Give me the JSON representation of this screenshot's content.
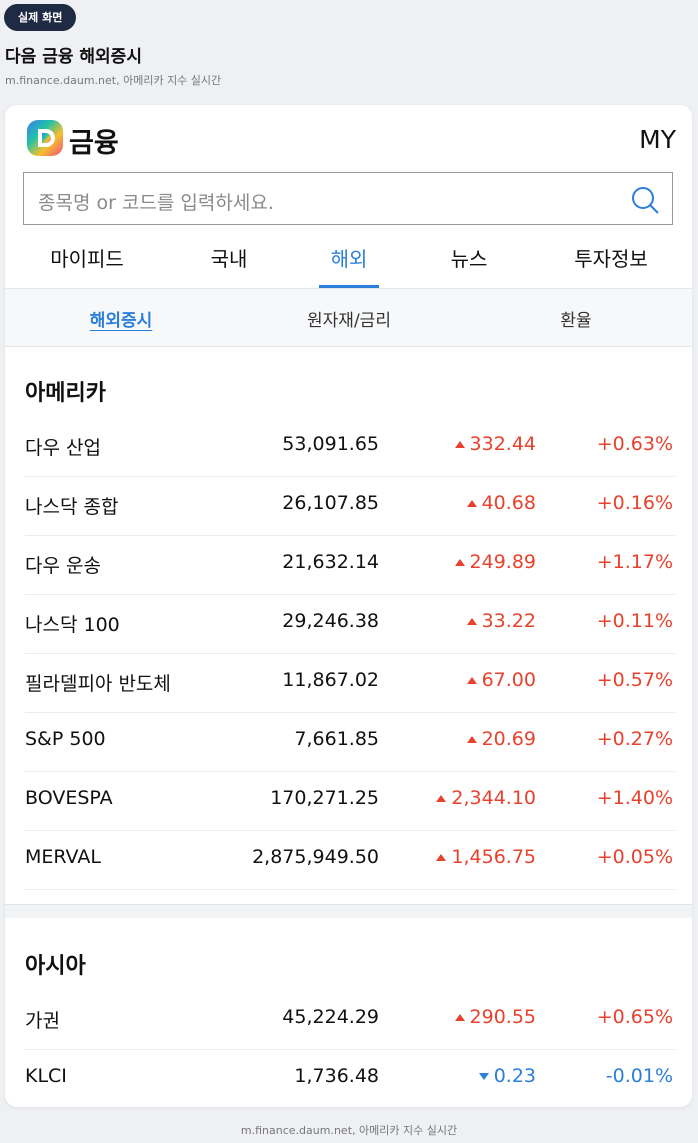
{
  "badge": "실제 화면",
  "title": "다음 금융 해외증시",
  "subtitle": "m.finance.daum.net, 아메리카 지수 실시간",
  "app": {
    "logo": "금융",
    "my": "MY",
    "search_placeholder": "종목명 or 코드를 입력하세요.",
    "tabs": [
      "마이피드",
      "국내",
      "해외",
      "뉴스",
      "투자정보"
    ],
    "active_tab": 2,
    "subtabs": [
      "해외증시",
      "원자재/금리",
      "환율"
    ],
    "active_subtab": 0,
    "sections": [
      {
        "title": "아메리카",
        "rows": [
          [
            "다우 산업",
            "53,091.65",
            "332.44",
            "+0.63%"
          ],
          [
            "나스닥 종합",
            "26,107.85",
            "40.68",
            "+0.16%"
          ],
          [
            "다우 운송",
            "21,632.14",
            "249.89",
            "+1.17%"
          ],
          [
            "나스닥 100",
            "29,246.38",
            "33.22",
            "+0.11%"
          ],
          [
            "필라델피아 반도체",
            "11,867.02",
            "67.00",
            "+0.57%"
          ],
          [
            "S&P 500",
            "7,661.85",
            "20.69",
            "+0.27%"
          ],
          [
            "BOVESPA",
            "170,271.25",
            "2,344.10",
            "+1.40%"
          ],
          [
            "MERVAL",
            "2,875,949.50",
            "1,456.75",
            "+0.05%"
          ]
        ]
      },
      {
        "title": "아시아",
        "rows": [
          [
            "가권",
            "45,224.29",
            "290.55",
            "+0.65%"
          ],
          [
            "KLCI",
            "1,736.48",
            "0.23",
            "-0.01%"
          ]
        ]
      }
    ]
  },
  "footer": "m.finance.daum.net, 아메리카 지수 실시간"
}
